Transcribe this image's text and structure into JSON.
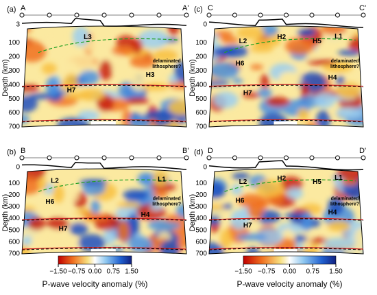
{
  "panels": [
    {
      "letter": "(a)",
      "left": "A",
      "right": "A'",
      "y_label": "Depth (km)",
      "yticks": [
        3,
        100,
        200,
        300,
        400,
        500,
        600,
        700
      ],
      "annotations": [
        "L3",
        "H3",
        "H7"
      ],
      "note": "delaminated lithosphere?"
    },
    {
      "letter": "(b)",
      "left": "B",
      "right": "B'",
      "y_label": "Depth (km)",
      "yticks": [
        0,
        100,
        200,
        300,
        400,
        500,
        600,
        700
      ],
      "annotations": [
        "L2",
        "L1",
        "H6",
        "H4",
        "H7"
      ],
      "note": "delaminated lithosphere?"
    },
    {
      "letter": "(c)",
      "left": "C",
      "right": "C'",
      "y_label": "Depth (km)",
      "yticks": [
        0,
        100,
        200,
        300,
        400,
        500,
        600,
        700
      ],
      "annotations": [
        "L2",
        "H2",
        "H5",
        "L1",
        "H6",
        "H4",
        "H7"
      ],
      "note": "delaminated lithosphere?"
    },
    {
      "letter": "(d)",
      "left": "D",
      "right": "D'",
      "y_label": "Depth (km)",
      "yticks": [
        0,
        100,
        200,
        300,
        400,
        500,
        600,
        700
      ],
      "annotations": [
        "L2",
        "H2",
        "H5",
        "L1",
        "H6",
        "H4",
        "H7"
      ],
      "note": "delaminated lithosphere?"
    }
  ],
  "colorbars": [
    {
      "ticks": [
        "−1.50",
        "−0.75",
        "0.00",
        "0.75",
        "1.50"
      ],
      "label": "P-wave velocity anomaly (%)"
    },
    {
      "ticks": [
        "−1.50",
        "−0.75",
        "0.00",
        "0.75",
        "1.50"
      ],
      "label": "P-wave velocity anomaly (%)"
    }
  ]
}
